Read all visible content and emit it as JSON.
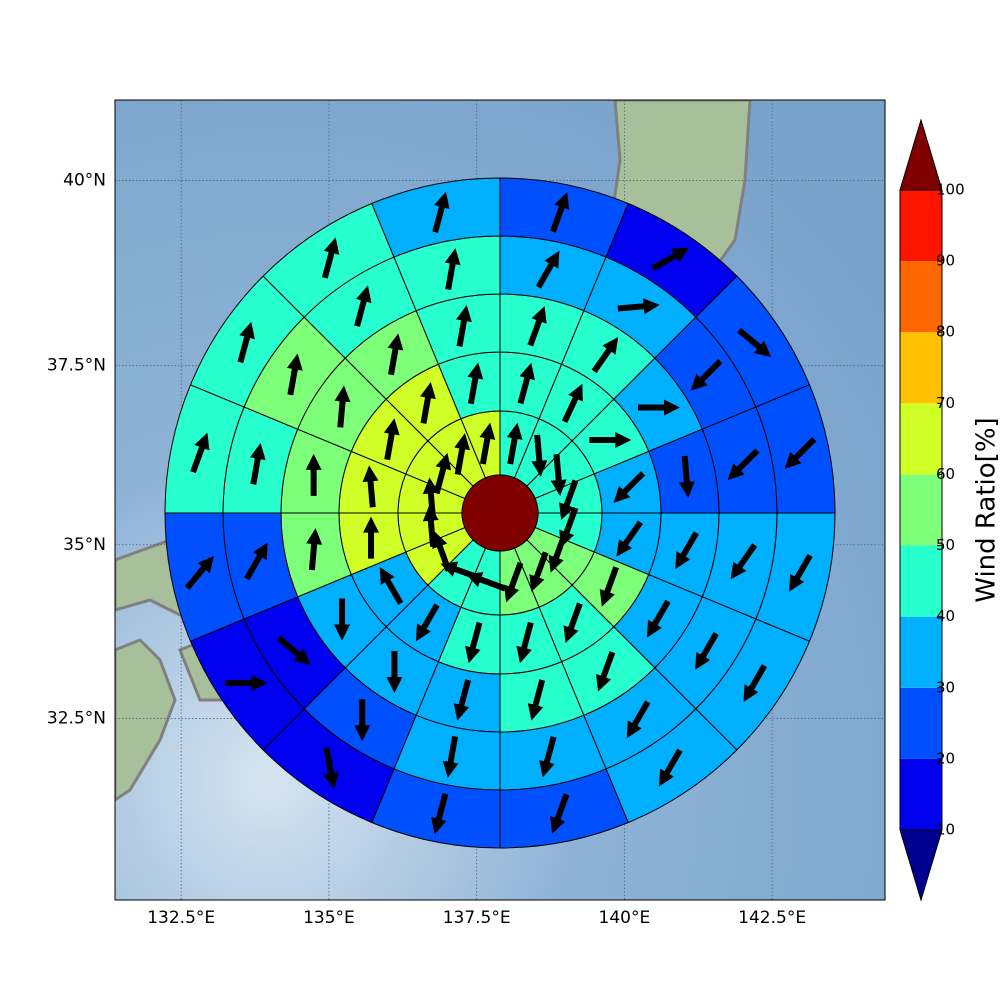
{
  "map": {
    "projection": "mercator",
    "xlim": [
      131.38,
      144.41
    ],
    "ylim": [
      29.81,
      41.06
    ],
    "grid": true,
    "xticks": [
      {
        "value": 132.5,
        "label": "132.5°E"
      },
      {
        "value": 135,
        "label": "135°E"
      },
      {
        "value": 137.5,
        "label": "137.5°E"
      },
      {
        "value": 140,
        "label": "140°E"
      },
      {
        "value": 142.5,
        "label": "142.5°E"
      }
    ],
    "yticks": [
      {
        "value": 32.5,
        "label": "32.5°N"
      },
      {
        "value": 35,
        "label": "35°N"
      },
      {
        "value": 37.5,
        "label": "37.5°N"
      },
      {
        "value": 40,
        "label": "40°N"
      }
    ],
    "colorbar": {
      "label": "Wind Ratio[%]",
      "levels": [
        10,
        20,
        30,
        40,
        50,
        60,
        70,
        80,
        90,
        100
      ],
      "colors": [
        "#0000f0",
        "#0050ff",
        "#00b0ff",
        "#28ffce",
        "#7dff7a",
        "#d0ff28",
        "#ffc000",
        "#ff6800",
        "#ff1400"
      ],
      "under": "#00008f",
      "over": "#800000"
    },
    "rings": [
      {
        "values": [
          45,
          45,
          45,
          45,
          45,
          55,
          55,
          55,
          45,
          45,
          65,
          65,
          65,
          65,
          65,
          65
        ],
        "directions": [
          10,
          175,
          175,
          200,
          200,
          200,
          200,
          200,
          290,
          290,
          340,
          355,
          355,
          15,
          10,
          10
        ]
      },
      {
        "values": [
          45,
          45,
          45,
          35,
          35,
          55,
          45,
          45,
          45,
          35,
          35,
          65,
          65,
          65,
          65,
          45
        ],
        "directions": [
          15,
          25,
          90,
          225,
          215,
          200,
          200,
          195,
          195,
          210,
          330,
          0,
          355,
          10,
          10,
          10
        ]
      },
      {
        "values": [
          45,
          45,
          35,
          25,
          35,
          35,
          45,
          45,
          35,
          35,
          35,
          55,
          55,
          55,
          55,
          45
        ],
        "directions": [
          20,
          35,
          90,
          175,
          210,
          210,
          200,
          195,
          195,
          180,
          180,
          5,
          0,
          5,
          10,
          10
        ]
      },
      {
        "values": [
          35,
          35,
          25,
          25,
          35,
          35,
          35,
          35,
          35,
          25,
          15,
          25,
          45,
          55,
          45,
          45
        ],
        "directions": [
          30,
          85,
          225,
          225,
          215,
          210,
          210,
          195,
          190,
          180,
          130,
          30,
          10,
          10,
          15,
          10
        ]
      },
      {
        "values": [
          25,
          15,
          25,
          25,
          35,
          35,
          35,
          25,
          25,
          15,
          15,
          25,
          45,
          45,
          45,
          35
        ],
        "directions": [
          20,
          60,
          130,
          225,
          210,
          210,
          210,
          200,
          195,
          170,
          90,
          40,
          20,
          15,
          15,
          15
        ]
      }
    ]
  }
}
